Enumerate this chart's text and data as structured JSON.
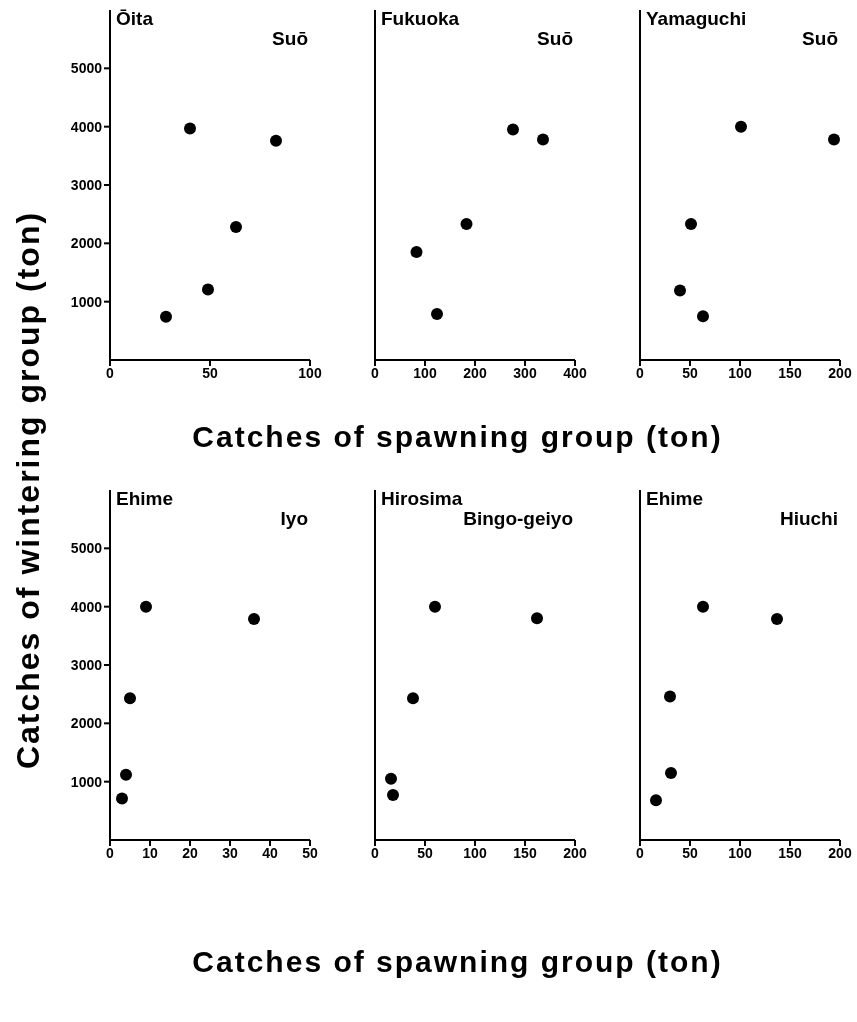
{
  "chart_data": [
    {
      "type": "scatter",
      "title": "Ōita",
      "subtitle": "Suō",
      "ylabel": "Catches of wintering group (ton)",
      "x": [
        40,
        83,
        63,
        49,
        28
      ],
      "values": [
        3970,
        3760,
        2280,
        1210,
        740
      ],
      "color": "#000000",
      "marker": "circle",
      "xlim": [
        0,
        100
      ],
      "xticks": [
        0,
        50,
        100
      ],
      "ylim": [
        0,
        6000
      ],
      "yticks": [
        1000,
        2000,
        3000,
        4000,
        5000
      ]
    },
    {
      "type": "scatter",
      "title": "Fukuoka",
      "subtitle": "Suō",
      "xlabel": "Catches of spawning group (ton)",
      "x": [
        276,
        336,
        183,
        83,
        124
      ],
      "values": [
        3950,
        3780,
        2330,
        1850,
        790
      ],
      "color": "#000000",
      "marker": "circle",
      "xlim": [
        0,
        400
      ],
      "xticks": [
        0,
        100,
        200,
        300,
        400
      ],
      "ylim": [
        0,
        6000
      ],
      "yticks": [
        1000,
        2000,
        3000,
        4000,
        5000
      ],
      "tick_labels": "x"
    },
    {
      "type": "scatter",
      "title": "Yamaguchi",
      "subtitle": "Suō",
      "x": [
        101,
        194,
        51,
        40,
        63
      ],
      "values": [
        4000,
        3780,
        2330,
        1190,
        750
      ],
      "color": "#000000",
      "marker": "circle",
      "xlim": [
        0,
        200
      ],
      "xticks": [
        0,
        50,
        100,
        150,
        200
      ],
      "ylim": [
        0,
        6000
      ],
      "yticks": [
        1000,
        2000,
        3000,
        4000,
        5000
      ],
      "tick_labels": "x"
    },
    {
      "type": "scatter",
      "title": "Ehime",
      "subtitle": "Iyo",
      "x": [
        9,
        36,
        5,
        4,
        3
      ],
      "values": [
        4000,
        3790,
        2430,
        1120,
        710
      ],
      "color": "#000000",
      "marker": "circle",
      "xlim": [
        0,
        50
      ],
      "xticks": [
        0,
        10,
        20,
        30,
        40,
        50
      ],
      "ylim": [
        0,
        6000
      ],
      "yticks": [
        1000,
        2000,
        3000,
        4000,
        5000
      ]
    },
    {
      "type": "scatter",
      "title": "Hirosima",
      "subtitle": "Bingo-geiyo",
      "xlabel": "Catches of spawning group (ton)",
      "x": [
        60,
        162,
        38,
        16,
        18
      ],
      "values": [
        4000,
        3800,
        2430,
        1050,
        770
      ],
      "color": "#000000",
      "marker": "circle",
      "xlim": [
        0,
        200
      ],
      "xticks": [
        0,
        50,
        100,
        150,
        200
      ],
      "ylim": [
        0,
        6000
      ],
      "yticks": [
        1000,
        2000,
        3000,
        4000,
        5000
      ],
      "tick_labels": "x"
    },
    {
      "type": "scatter",
      "title": "Ehime",
      "subtitle": "Hiuchi",
      "x": [
        63,
        137,
        30,
        31,
        16
      ],
      "values": [
        4000,
        3790,
        2460,
        1150,
        680
      ],
      "color": "#000000",
      "marker": "circle",
      "xlim": [
        0,
        200
      ],
      "xticks": [
        0,
        50,
        100,
        150,
        200
      ],
      "ylim": [
        0,
        6000
      ],
      "yticks": [
        1000,
        2000,
        3000,
        4000,
        5000
      ],
      "tick_labels": "x"
    }
  ]
}
